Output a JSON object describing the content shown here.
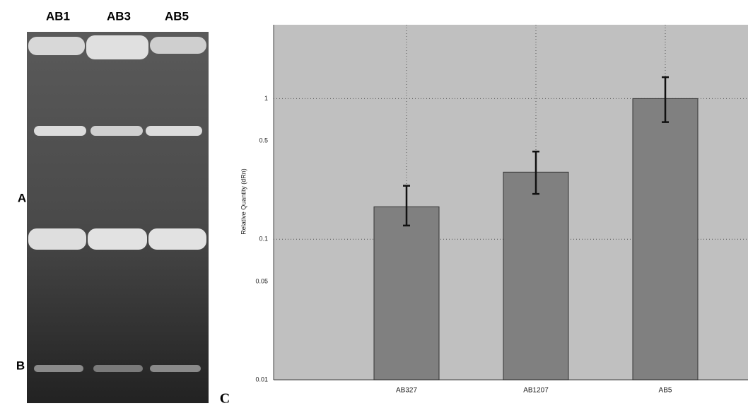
{
  "gel": {
    "lanes": [
      "AB1",
      "AB3",
      "AB5"
    ],
    "labels": [
      "A",
      "B"
    ]
  },
  "panel_label": "C",
  "chart_data": {
    "type": "bar",
    "ylabel": "Relative Quantity (dRn)",
    "categories": [
      "AB327",
      "AB1207",
      "AB5"
    ],
    "values": [
      0.17,
      0.3,
      1.0
    ],
    "error_lower": [
      0.125,
      0.21,
      0.68
    ],
    "error_upper": [
      0.24,
      0.42,
      1.42
    ],
    "color": "#808080",
    "background": "#c0c0c0",
    "log_scale": true,
    "grid": true,
    "ylim": [
      0.01,
      3.35
    ],
    "yticks": [
      0.01,
      0.05,
      0.1,
      0.5,
      1
    ]
  }
}
